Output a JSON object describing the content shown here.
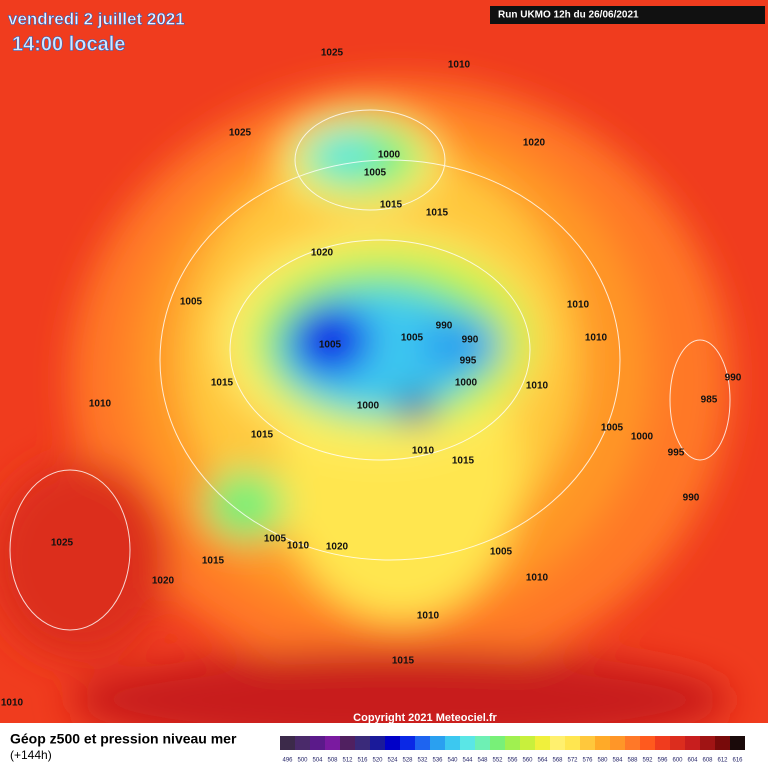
{
  "header": {
    "date": "vendredi 2 juillet 2021",
    "time": "14:00 locale",
    "run": "Run UKMO 12h du 26/06/2021"
  },
  "map": {
    "isobar_labels": [
      1025,
      1010,
      1025,
      1020,
      1000,
      1005,
      1015,
      1015,
      1020,
      1005,
      1010,
      990,
      1005,
      1005,
      990,
      1010,
      995,
      1015,
      1000,
      1010,
      990,
      1010,
      985,
      1000,
      1015,
      1005,
      1000,
      1010,
      1015,
      995,
      990,
      1005,
      1010,
      1020,
      1025,
      1005,
      1015,
      1010,
      1020,
      1010,
      1015,
      1010
    ],
    "copyright": "Copyright 2021 Meteociel.fr"
  },
  "footer": {
    "title": "Géop z500 et pression niveau mer",
    "lead": "(+144h)"
  },
  "legend": {
    "labels": [
      496,
      500,
      504,
      508,
      512,
      516,
      520,
      524,
      528,
      532,
      536,
      540,
      544,
      548,
      552,
      556,
      560,
      564,
      568,
      572,
      576,
      580,
      584,
      588,
      592,
      596,
      600,
      604,
      608,
      612,
      616
    ],
    "colors": [
      "#3c2a4a",
      "#4a2a6a",
      "#5b1a8a",
      "#7a1aa0",
      "#502060",
      "#3a2a7a",
      "#1a1a9a",
      "#0000c8",
      "#0a28e6",
      "#1e64f0",
      "#2aa0f0",
      "#3cc8f0",
      "#5ae6e6",
      "#6ef0b4",
      "#78f078",
      "#a0f050",
      "#c8f03c",
      "#f0f03c",
      "#fff06e",
      "#ffe650",
      "#ffc83c",
      "#ffaa28",
      "#ff9628",
      "#ff7828",
      "#ff5a1e",
      "#f03c1e",
      "#dc2d1e",
      "#c81e1e",
      "#a01414",
      "#780a0a",
      "#1a0a0a"
    ]
  }
}
